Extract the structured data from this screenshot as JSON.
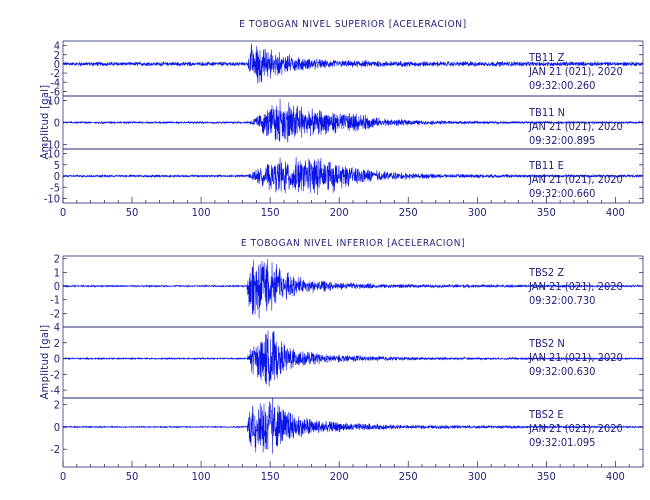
{
  "chart_data": [
    {
      "type": "line",
      "title": "E TOBOGAN NIVEL SUPERIOR [ACELERACION]",
      "ylabel": "Amplitud [gal]",
      "xlabel": "",
      "xlim": [
        0,
        420
      ],
      "xticks": [
        0,
        50,
        100,
        150,
        200,
        250,
        300,
        350,
        400
      ],
      "grid": false,
      "series": [
        {
          "name": "TB11 Z",
          "station": "TB11",
          "component": "Z",
          "date": "JAN 21 (021), 2020",
          "start_time": "09:32:00.260",
          "ylim": [
            -7,
            5
          ],
          "yticks": [
            4,
            2,
            0,
            -2,
            -4,
            -6
          ],
          "noise": 0.4,
          "envelope": [
            [
              0,
              0.35
            ],
            [
              134,
              0.4
            ],
            [
              136,
              4.5
            ],
            [
              140,
              4.0
            ],
            [
              148,
              3.0
            ],
            [
              160,
              2.0
            ],
            [
              175,
              1.2
            ],
            [
              200,
              0.7
            ],
            [
              260,
              0.5
            ],
            [
              420,
              0.4
            ]
          ]
        },
        {
          "name": "TB11 N",
          "station": "TB11",
          "component": "N",
          "date": "JAN 21 (021), 2020",
          "start_time": "09:32:00.895",
          "ylim": [
            -12,
            12
          ],
          "yticks": [
            10,
            0,
            -10
          ],
          "noise": 0.4,
          "envelope": [
            [
              0,
              0.35
            ],
            [
              134,
              0.4
            ],
            [
              140,
              2.5
            ],
            [
              150,
              6.5
            ],
            [
              158,
              9.5
            ],
            [
              166,
              8.0
            ],
            [
              180,
              5.5
            ],
            [
              200,
              4.0
            ],
            [
              215,
              3.5
            ],
            [
              230,
              1.8
            ],
            [
              260,
              0.8
            ],
            [
              300,
              0.5
            ],
            [
              420,
              0.4
            ]
          ]
        },
        {
          "name": "TB11 E",
          "station": "TB11",
          "component": "E",
          "date": "JAN 21 (021), 2020",
          "start_time": "09:32:00.660",
          "ylim": [
            -12,
            12
          ],
          "yticks": [
            10,
            5,
            0,
            -5,
            -10
          ],
          "noise": 0.5,
          "envelope": [
            [
              0,
              0.45
            ],
            [
              134,
              0.5
            ],
            [
              140,
              3.0
            ],
            [
              150,
              5.5
            ],
            [
              160,
              8.0
            ],
            [
              175,
              6.5
            ],
            [
              190,
              8.0
            ],
            [
              200,
              5.0
            ],
            [
              215,
              3.0
            ],
            [
              240,
              1.5
            ],
            [
              280,
              0.7
            ],
            [
              420,
              0.5
            ]
          ]
        }
      ]
    },
    {
      "type": "line",
      "title": "E TOBOGAN NIVEL INFERIOR [ACELERACION]",
      "ylabel": "Amplitud [gal]",
      "xlabel": "",
      "xlim": [
        0,
        420
      ],
      "xticks": [
        0,
        50,
        100,
        150,
        200,
        250,
        300,
        350,
        400
      ],
      "grid": false,
      "series": [
        {
          "name": "TBS2 Z",
          "station": "TBS2",
          "component": "Z",
          "date": "JAN 21 (021), 2020",
          "start_time": "09:32:00.730",
          "ylim": [
            -3,
            2.2
          ],
          "yticks": [
            2,
            1,
            0,
            -1,
            -2
          ],
          "noise": 0.06,
          "envelope": [
            [
              0,
              0.05
            ],
            [
              133,
              0.05
            ],
            [
              135,
              1.7
            ],
            [
              142,
              2.1
            ],
            [
              150,
              1.8
            ],
            [
              160,
              1.0
            ],
            [
              175,
              0.5
            ],
            [
              200,
              0.25
            ],
            [
              240,
              0.12
            ],
            [
              420,
              0.06
            ]
          ]
        },
        {
          "name": "TBS2 N",
          "station": "TBS2",
          "component": "N",
          "date": "JAN 21 (021), 2020",
          "start_time": "09:32:00.630",
          "ylim": [
            -5,
            4
          ],
          "yticks": [
            4,
            2,
            0,
            -2,
            -4
          ],
          "noise": 0.08,
          "envelope": [
            [
              0,
              0.08
            ],
            [
              133,
              0.08
            ],
            [
              136,
              1.5
            ],
            [
              145,
              2.5
            ],
            [
              150,
              3.5
            ],
            [
              158,
              2.0
            ],
            [
              170,
              1.0
            ],
            [
              190,
              0.5
            ],
            [
              220,
              0.3
            ],
            [
              260,
              0.15
            ],
            [
              420,
              0.08
            ]
          ]
        },
        {
          "name": "TBS2 E",
          "station": "TBS2",
          "component": "E",
          "date": "JAN 21 (021), 2020",
          "start_time": "09:32:01.095",
          "ylim": [
            -3.6,
            2.6
          ],
          "yticks": [
            2,
            0,
            -2
          ],
          "noise": 0.05,
          "envelope": [
            [
              0,
              0.05
            ],
            [
              133,
              0.05
            ],
            [
              135,
              1.8
            ],
            [
              142,
              2.2
            ],
            [
              150,
              2.8
            ],
            [
              160,
              1.3
            ],
            [
              180,
              0.6
            ],
            [
              210,
              0.3
            ],
            [
              250,
              0.15
            ],
            [
              420,
              0.06
            ]
          ]
        }
      ]
    }
  ]
}
